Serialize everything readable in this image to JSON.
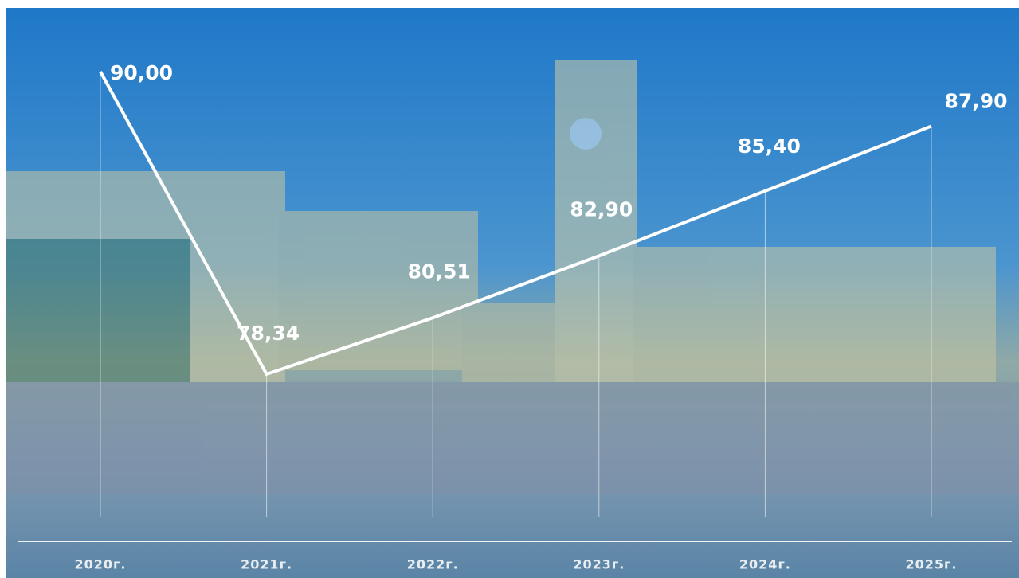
{
  "chart_data": {
    "type": "line",
    "categories": [
      "2020г.",
      "2021г.",
      "2022г.",
      "2023г.",
      "2024г.",
      "2025г."
    ],
    "values": [
      90.0,
      78.34,
      80.51,
      82.9,
      85.4,
      87.9
    ],
    "value_labels": [
      "90,00",
      "78,34",
      "80,51",
      "82,90",
      "85,40",
      "87,90"
    ],
    "color": "#ffffff"
  }
}
